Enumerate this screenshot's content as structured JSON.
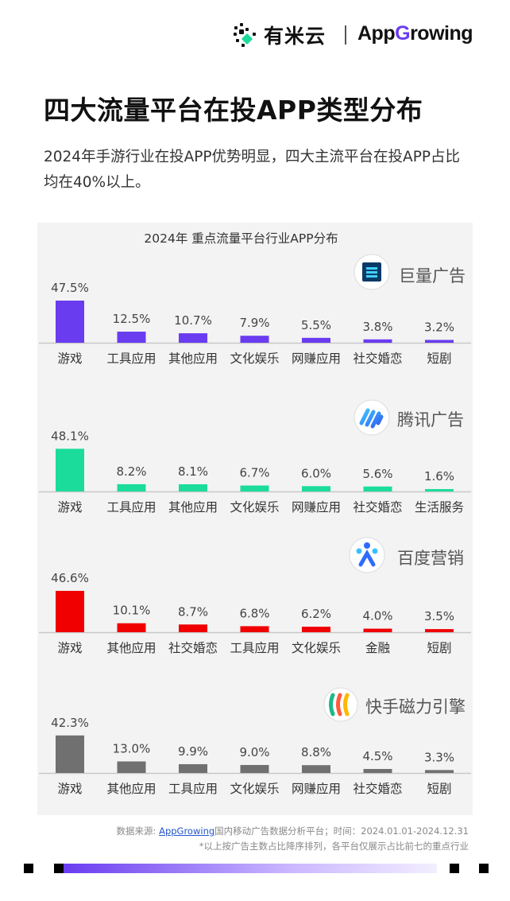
{
  "brand": {
    "left_name": "有米云",
    "right_name_prefix": "App",
    "right_name_accent": "G",
    "right_name_suffix": "rowing"
  },
  "page": {
    "title": "四大流量平台在投APP类型分布",
    "description": "2024年手游行业在投APP优势明显，四大主流平台在投APP占比均在40%以上。"
  },
  "chart_data": [
    {
      "type": "bar",
      "title": "2024年 重点流量平台行业APP分布",
      "platform": "巨量广告",
      "color": "#6a3cf0",
      "categories": [
        "游戏",
        "工具应用",
        "其他应用",
        "文化娱乐",
        "网赚应用",
        "社交婚恋",
        "短剧"
      ],
      "values": [
        47.5,
        12.5,
        10.7,
        7.9,
        5.5,
        3.8,
        3.2
      ],
      "value_labels": [
        "47.5%",
        "12.5%",
        "10.7%",
        "7.9%",
        "5.5%",
        "3.8%",
        "3.2%"
      ]
    },
    {
      "type": "bar",
      "platform": "腾讯广告",
      "color": "#1bdc9b",
      "categories": [
        "游戏",
        "工具应用",
        "其他应用",
        "文化娱乐",
        "网赚应用",
        "社交婚恋",
        "生活服务"
      ],
      "values": [
        48.1,
        8.2,
        8.1,
        6.7,
        6.0,
        5.6,
        1.6
      ],
      "value_labels": [
        "48.1%",
        "8.2%",
        "8.1%",
        "6.7%",
        "6.0%",
        "5.6%",
        "1.6%"
      ]
    },
    {
      "type": "bar",
      "platform": "百度营销",
      "color": "#f00000",
      "categories": [
        "游戏",
        "其他应用",
        "社交婚恋",
        "工具应用",
        "文化娱乐",
        "金融",
        "短剧"
      ],
      "values": [
        46.6,
        10.1,
        8.7,
        6.8,
        6.2,
        4.0,
        3.5
      ],
      "value_labels": [
        "46.6%",
        "10.1%",
        "8.7%",
        "6.8%",
        "6.2%",
        "4.0%",
        "3.5%"
      ]
    },
    {
      "type": "bar",
      "platform": "快手磁力引擎",
      "color": "#707070",
      "categories": [
        "游戏",
        "其他应用",
        "工具应用",
        "文化娱乐",
        "网赚应用",
        "社交婚恋",
        "短剧"
      ],
      "values": [
        42.3,
        13.0,
        9.9,
        9.0,
        8.8,
        4.5,
        3.3
      ],
      "value_labels": [
        "42.3%",
        "13.0%",
        "9.9%",
        "9.0%",
        "8.8%",
        "4.5%",
        "3.3%"
      ]
    }
  ],
  "footer": {
    "source_prefix": "数据来源: ",
    "source_link": "AppGrowing",
    "source_suffix": "国内移动广告数据分析平台；时间：2024.01.01-2024.12.31",
    "note": "*以上按广告主数占比降序排列，各平台仅展示占比前七的重点行业"
  },
  "icons": [
    "youmi-logo-icon",
    "juliang-logo-icon",
    "tencent-ads-logo-icon",
    "baidu-logo-icon",
    "kuaishou-logo-icon"
  ]
}
